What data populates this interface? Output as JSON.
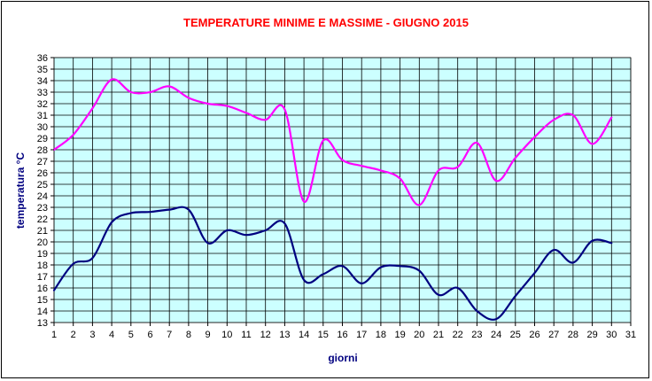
{
  "chart_data": {
    "type": "line",
    "title": "TEMPERATURE MINIME E MASSIME  - GIUGNO 2015",
    "xlabel": "giorni",
    "ylabel": "temperatura °C",
    "xlim": [
      1,
      31
    ],
    "ylim": [
      13,
      36
    ],
    "x_ticks": [
      "1",
      "2",
      "3",
      "4",
      "5",
      "6",
      "7",
      "8",
      "9",
      "10",
      "11",
      "12",
      "13",
      "14",
      "15",
      "16",
      "17",
      "18",
      "19",
      "20",
      "21",
      "22",
      "23",
      "24",
      "25",
      "26",
      "27",
      "28",
      "29",
      "30",
      "31"
    ],
    "y_ticks": [
      "13",
      "14",
      "15",
      "16",
      "17",
      "18",
      "19",
      "20",
      "21",
      "22",
      "23",
      "24",
      "25",
      "26",
      "27",
      "28",
      "29",
      "30",
      "31",
      "32",
      "33",
      "34",
      "35",
      "36"
    ],
    "grid": true,
    "plot_background": "#ccffff",
    "title_color": "#ff0000",
    "axis_label_color": "#000080",
    "series": [
      {
        "color": "#ff00ff",
        "x": [
          1,
          2,
          3,
          4,
          5,
          6,
          7,
          8,
          9,
          10,
          11,
          12,
          13,
          14,
          15,
          16,
          17,
          18,
          19,
          20,
          21,
          22,
          23,
          24,
          25,
          26,
          27,
          28,
          29,
          30
        ],
        "values": [
          28.0,
          29.3,
          31.6,
          34.1,
          33.0,
          33.0,
          33.5,
          32.5,
          32.0,
          31.8,
          31.2,
          30.6,
          31.5,
          23.5,
          28.8,
          27.1,
          26.6,
          26.2,
          25.5,
          23.2,
          26.2,
          26.5,
          28.6,
          25.3,
          27.3,
          29.1,
          30.6,
          31.0,
          28.5,
          30.8
        ]
      },
      {
        "color": "#000080",
        "x": [
          1,
          2,
          3,
          4,
          5,
          6,
          7,
          8,
          9,
          10,
          11,
          12,
          13,
          14,
          15,
          16,
          17,
          18,
          19,
          20,
          21,
          22,
          23,
          24,
          25,
          26,
          27,
          28,
          29,
          30
        ],
        "values": [
          15.8,
          18.1,
          18.6,
          21.7,
          22.5,
          22.6,
          22.8,
          22.8,
          19.9,
          21.0,
          20.6,
          21.0,
          21.6,
          16.7,
          17.2,
          17.9,
          16.4,
          17.8,
          17.9,
          17.5,
          15.4,
          16.0,
          14.0,
          13.3,
          15.3,
          17.3,
          19.3,
          18.2,
          20.1,
          19.9
        ]
      }
    ]
  }
}
